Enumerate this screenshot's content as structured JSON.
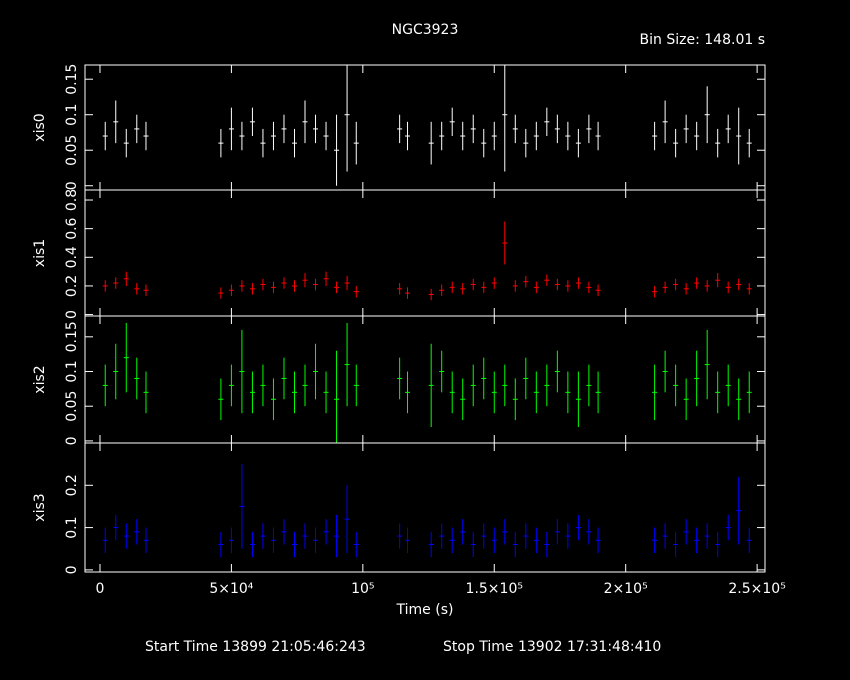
{
  "title": "NGC3923",
  "bin_size": "Bin Size: 148.01 s",
  "start_time": "Start Time 13899 21:05:46:243",
  "stop_time": "Stop Time 13902 17:31:48:410",
  "chart_data": [
    {
      "type": "errorbar",
      "ylabel": "xis0",
      "color": "#ffffff",
      "x": [
        2000,
        6000,
        10000,
        14000,
        17500,
        46000,
        50000,
        54000,
        58000,
        62000,
        66000,
        70000,
        74000,
        78000,
        82000,
        86000,
        90000,
        94000,
        97500,
        114000,
        117000,
        126000,
        130000,
        134000,
        138000,
        142000,
        146000,
        150000,
        154000,
        158000,
        162000,
        166000,
        170000,
        174000,
        178000,
        182000,
        186000,
        189500,
        211000,
        215000,
        219000,
        223000,
        227000,
        231000,
        235000,
        239000,
        243000,
        247000
      ],
      "values": [
        0.07,
        0.09,
        0.06,
        0.08,
        0.07,
        0.06,
        0.08,
        0.07,
        0.09,
        0.06,
        0.07,
        0.08,
        0.06,
        0.09,
        0.08,
        0.07,
        0.05,
        0.1,
        0.06,
        0.08,
        0.07,
        0.06,
        0.07,
        0.09,
        0.07,
        0.08,
        0.06,
        0.07,
        0.1,
        0.08,
        0.06,
        0.07,
        0.09,
        0.08,
        0.07,
        0.06,
        0.08,
        0.07,
        0.07,
        0.09,
        0.06,
        0.08,
        0.07,
        0.1,
        0.06,
        0.08,
        0.07,
        0.06
      ],
      "errors": [
        0.02,
        0.03,
        0.02,
        0.02,
        0.02,
        0.02,
        0.03,
        0.02,
        0.02,
        0.02,
        0.02,
        0.02,
        0.02,
        0.03,
        0.02,
        0.02,
        0.05,
        0.08,
        0.03,
        0.02,
        0.02,
        0.03,
        0.02,
        0.02,
        0.02,
        0.02,
        0.02,
        0.02,
        0.08,
        0.02,
        0.02,
        0.02,
        0.02,
        0.02,
        0.02,
        0.02,
        0.02,
        0.02,
        0.02,
        0.03,
        0.02,
        0.02,
        0.02,
        0.04,
        0.02,
        0.02,
        0.04,
        0.02
      ],
      "xlim": [
        -5700,
        253000
      ],
      "ylim": [
        -0.006,
        0.17
      ],
      "yticks": [
        0,
        0.05,
        0.1,
        0.15
      ]
    },
    {
      "type": "errorbar",
      "ylabel": "xis1",
      "color": "#ff0000",
      "x": [
        2000,
        6000,
        10000,
        14000,
        17500,
        46000,
        50000,
        54000,
        58000,
        62000,
        66000,
        70000,
        74000,
        78000,
        82000,
        86000,
        90000,
        94000,
        97500,
        114000,
        117000,
        126000,
        130000,
        134000,
        138000,
        142000,
        146000,
        150000,
        154000,
        158000,
        162000,
        166000,
        170000,
        174000,
        178000,
        182000,
        186000,
        189500,
        211000,
        215000,
        219000,
        223000,
        227000,
        231000,
        235000,
        239000,
        243000,
        247000
      ],
      "values": [
        0.2,
        0.22,
        0.25,
        0.18,
        0.17,
        0.15,
        0.17,
        0.2,
        0.18,
        0.21,
        0.19,
        0.22,
        0.2,
        0.24,
        0.21,
        0.25,
        0.19,
        0.22,
        0.16,
        0.18,
        0.15,
        0.14,
        0.17,
        0.19,
        0.18,
        0.21,
        0.19,
        0.22,
        0.5,
        0.2,
        0.23,
        0.19,
        0.24,
        0.21,
        0.2,
        0.22,
        0.19,
        0.17,
        0.16,
        0.19,
        0.21,
        0.18,
        0.22,
        0.2,
        0.24,
        0.19,
        0.21,
        0.18
      ],
      "errors": [
        0.04,
        0.04,
        0.05,
        0.04,
        0.04,
        0.04,
        0.04,
        0.04,
        0.04,
        0.04,
        0.04,
        0.04,
        0.04,
        0.05,
        0.04,
        0.05,
        0.04,
        0.05,
        0.04,
        0.04,
        0.04,
        0.04,
        0.04,
        0.04,
        0.04,
        0.04,
        0.04,
        0.04,
        0.15,
        0.04,
        0.04,
        0.04,
        0.04,
        0.04,
        0.04,
        0.04,
        0.04,
        0.04,
        0.04,
        0.04,
        0.04,
        0.04,
        0.04,
        0.04,
        0.05,
        0.04,
        0.04,
        0.04
      ],
      "xlim": [
        -5700,
        253000
      ],
      "ylim": [
        -0.01,
        0.87
      ],
      "yticks": [
        0,
        0.2,
        0.4,
        0.6,
        0.8
      ]
    },
    {
      "type": "errorbar",
      "ylabel": "xis2",
      "color": "#00ff00",
      "x": [
        2000,
        6000,
        10000,
        14000,
        17500,
        46000,
        50000,
        54000,
        58000,
        62000,
        66000,
        70000,
        74000,
        78000,
        82000,
        86000,
        90000,
        94000,
        97500,
        114000,
        117000,
        126000,
        130000,
        134000,
        138000,
        142000,
        146000,
        150000,
        154000,
        158000,
        162000,
        166000,
        170000,
        174000,
        178000,
        182000,
        186000,
        189500,
        211000,
        215000,
        219000,
        223000,
        227000,
        231000,
        235000,
        239000,
        243000,
        247000
      ],
      "values": [
        0.08,
        0.1,
        0.12,
        0.09,
        0.07,
        0.06,
        0.08,
        0.1,
        0.07,
        0.08,
        0.06,
        0.09,
        0.07,
        0.08,
        0.1,
        0.07,
        0.06,
        0.11,
        0.08,
        0.09,
        0.07,
        0.08,
        0.1,
        0.07,
        0.06,
        0.08,
        0.09,
        0.07,
        0.08,
        0.06,
        0.09,
        0.07,
        0.08,
        0.1,
        0.07,
        0.06,
        0.08,
        0.07,
        0.07,
        0.1,
        0.08,
        0.06,
        0.09,
        0.11,
        0.07,
        0.08,
        0.06,
        0.07
      ],
      "errors": [
        0.03,
        0.04,
        0.05,
        0.03,
        0.03,
        0.03,
        0.03,
        0.06,
        0.03,
        0.03,
        0.03,
        0.03,
        0.03,
        0.03,
        0.04,
        0.03,
        0.07,
        0.06,
        0.03,
        0.03,
        0.03,
        0.06,
        0.03,
        0.03,
        0.03,
        0.03,
        0.03,
        0.03,
        0.03,
        0.03,
        0.03,
        0.03,
        0.03,
        0.03,
        0.03,
        0.04,
        0.03,
        0.03,
        0.04,
        0.03,
        0.03,
        0.03,
        0.04,
        0.05,
        0.03,
        0.03,
        0.03,
        0.03
      ],
      "xlim": [
        -5700,
        253000
      ],
      "ylim": [
        -0.003,
        0.18
      ],
      "yticks": [
        0,
        0.05,
        0.1,
        0.15
      ]
    },
    {
      "type": "errorbar",
      "ylabel": "xis3",
      "color": "#0000ff",
      "x": [
        2000,
        6000,
        10000,
        14000,
        17500,
        46000,
        50000,
        54000,
        58000,
        62000,
        66000,
        70000,
        74000,
        78000,
        82000,
        86000,
        90000,
        94000,
        97500,
        114000,
        117000,
        126000,
        130000,
        134000,
        138000,
        142000,
        146000,
        150000,
        154000,
        158000,
        162000,
        166000,
        170000,
        174000,
        178000,
        182000,
        186000,
        189500,
        211000,
        215000,
        219000,
        223000,
        227000,
        231000,
        235000,
        239000,
        243000,
        247000
      ],
      "values": [
        0.07,
        0.1,
        0.08,
        0.09,
        0.07,
        0.06,
        0.07,
        0.15,
        0.06,
        0.08,
        0.07,
        0.09,
        0.06,
        0.08,
        0.07,
        0.09,
        0.08,
        0.12,
        0.06,
        0.08,
        0.07,
        0.06,
        0.08,
        0.07,
        0.09,
        0.06,
        0.08,
        0.07,
        0.09,
        0.06,
        0.08,
        0.07,
        0.06,
        0.09,
        0.08,
        0.1,
        0.09,
        0.07,
        0.07,
        0.08,
        0.06,
        0.09,
        0.07,
        0.08,
        0.06,
        0.1,
        0.14,
        0.07
      ],
      "errors": [
        0.03,
        0.03,
        0.03,
        0.03,
        0.03,
        0.03,
        0.03,
        0.1,
        0.03,
        0.03,
        0.03,
        0.03,
        0.03,
        0.03,
        0.03,
        0.03,
        0.05,
        0.08,
        0.03,
        0.03,
        0.03,
        0.03,
        0.03,
        0.03,
        0.03,
        0.03,
        0.03,
        0.03,
        0.03,
        0.03,
        0.03,
        0.03,
        0.03,
        0.03,
        0.03,
        0.03,
        0.03,
        0.03,
        0.03,
        0.03,
        0.03,
        0.03,
        0.03,
        0.03,
        0.03,
        0.03,
        0.08,
        0.03
      ],
      "xlim": [
        -5700,
        253000
      ],
      "ylim": [
        -0.005,
        0.3
      ],
      "yticks": [
        0,
        0.1,
        0.2
      ],
      "xlabel": "Time (s)",
      "xticks": [
        0,
        {
          "value": 50000,
          "label": "5×10⁴"
        },
        {
          "value": 100000,
          "label": "10⁵"
        },
        {
          "value": 150000,
          "label": "1.5×10⁵"
        },
        {
          "value": 200000,
          "label": "2×10⁵"
        },
        {
          "value": 250000,
          "label": "2.5×10⁵"
        }
      ]
    }
  ]
}
